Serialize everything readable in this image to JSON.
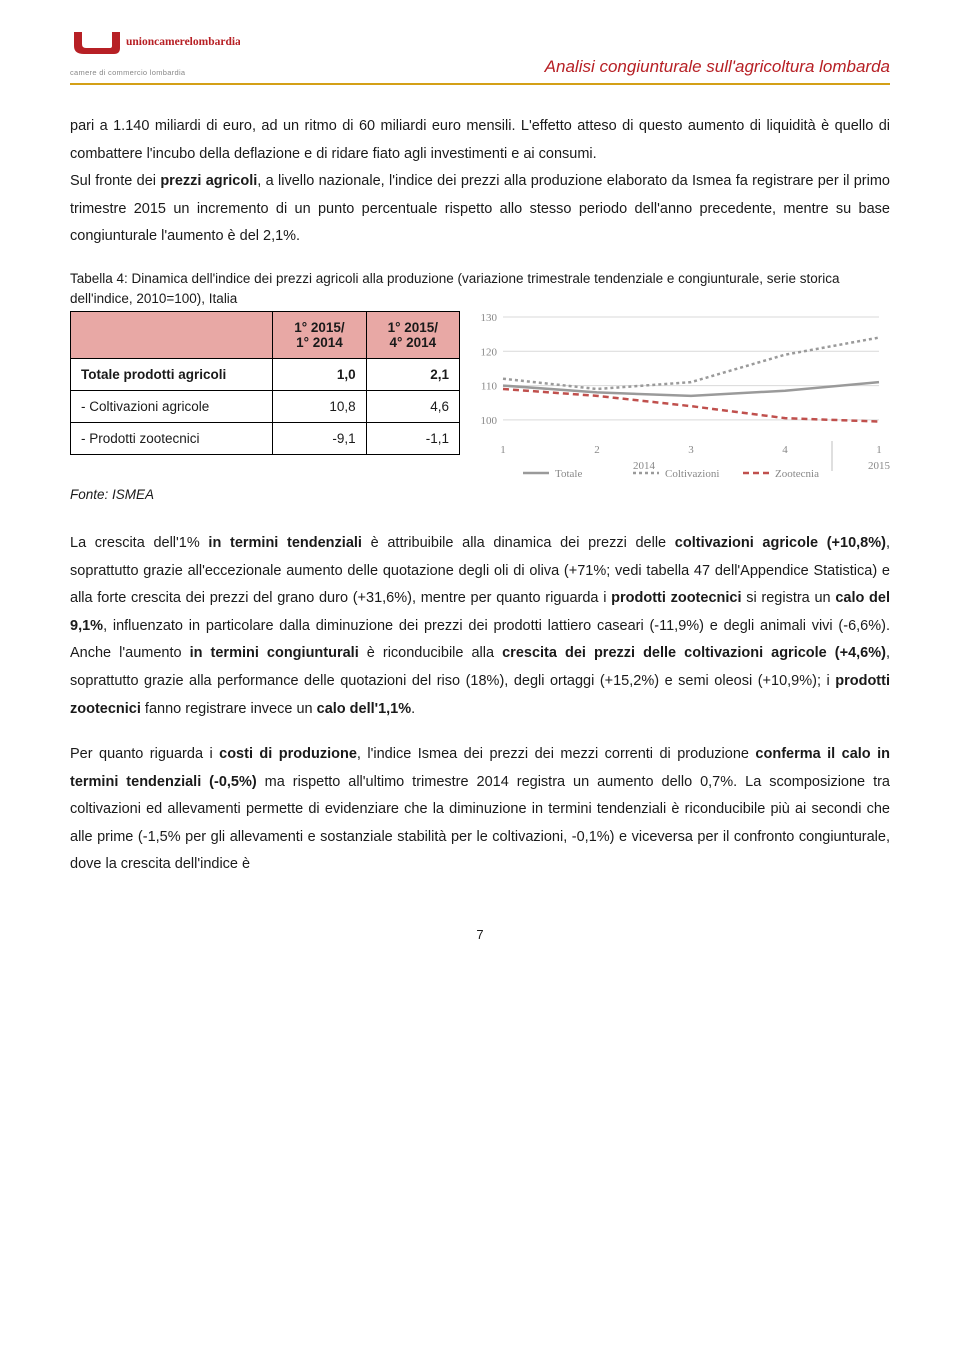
{
  "header": {
    "title": "Analisi congiunturale sull'agricoltura lombarda",
    "logo_main": "unioncamerelombardia",
    "logo_sub": "camere di commercio lombardia"
  },
  "para1_a": "pari a 1.140 miliardi di euro, ad un ritmo di 60 miliardi euro mensili. L'effetto atteso di questo aumento di liquidità è quello di combattere l'incubo della deflazione e di ridare fiato agli investimenti e ai consumi.",
  "para1_b": "Sul fronte dei ",
  "para1_b_bold": "prezzi agricoli",
  "para1_c": ", a livello nazionale, l'indice dei prezzi alla produzione elaborato da Ismea fa registrare per il primo trimestre 2015 un incremento di un punto percentuale rispetto allo stesso periodo dell'anno precedente, mentre su base congiunturale l'aumento è del 2,1%.",
  "table_caption": "Tabella 4: Dinamica dell'indice dei prezzi agricoli alla produzione (variazione trimestrale tendenziale e congiunturale, serie storica dell'indice, 2010=100), Italia",
  "table": {
    "col1_l1": "1° 2015/",
    "col1_l2": "1° 2014",
    "col2_l1": "1° 2015/",
    "col2_l2": "4° 2014",
    "rows": [
      {
        "label": "Totale prodotti agricoli",
        "v1": "1,0",
        "v2": "2,1",
        "bold": true
      },
      {
        "label": " - Coltivazioni agricole",
        "v1": "10,8",
        "v2": "4,6",
        "bold": false
      },
      {
        "label": " - Prodotti zootecnici",
        "v1": "-9,1",
        "v2": "-1,1",
        "bold": false
      }
    ]
  },
  "chart": {
    "ylim": [
      95,
      130
    ],
    "yticks": [
      100,
      110,
      120,
      130
    ],
    "x_labels": [
      "1",
      "2",
      "3",
      "4",
      "1"
    ],
    "x_group_labels": [
      "2014",
      "2015"
    ],
    "series": [
      {
        "name": "Totale",
        "color": "#9a9a9a",
        "dash": null,
        "values": [
          110,
          108,
          107,
          108.5,
          111
        ]
      },
      {
        "name": "Coltivazioni",
        "color": "#9a9a9a",
        "dash": "3,3",
        "values": [
          112,
          109,
          111,
          119,
          124
        ]
      },
      {
        "name": "Zootecnia",
        "color": "#c0504d",
        "dash": "6,4",
        "values": [
          109,
          107,
          104,
          100.5,
          99.5
        ]
      }
    ],
    "legend": [
      "Totale",
      "Coltivazioni",
      "Zootecnia"
    ],
    "grid_color": "#d9d9d9",
    "axis_color": "#bfbfbf",
    "label_color": "#888888",
    "label_fontsize": 11
  },
  "source": "Fonte: ISMEA",
  "para2_a": "La crescita dell'1% ",
  "para2_b_bold": "in termini tendenziali",
  "para2_c": " è attribuibile alla dinamica dei prezzi delle ",
  "para2_d_bold": "coltivazioni agricole (+10,8%)",
  "para2_e": ", soprattutto grazie all'eccezionale aumento delle quotazione degli oli di oliva (+71%; vedi tabella 47 dell'Appendice Statistica) e alla forte crescita dei prezzi del grano duro (+31,6%), mentre per quanto riguarda i ",
  "para2_f_bold": "prodotti zootecnici",
  "para2_g": " si registra un ",
  "para2_h_bold": "calo del 9,1%",
  "para2_i": ", influenzato in particolare dalla diminuzione dei prezzi dei prodotti lattiero caseari (-11,9%) e degli animali vivi (-6,6%). Anche l'aumento ",
  "para2_j_bold": "in termini congiunturali",
  "para2_k": " è riconducibile alla ",
  "para2_l_bold": "crescita dei prezzi delle coltivazioni agricole (+4,6%)",
  "para2_m": ", soprattutto grazie alla performance delle quotazioni del riso (18%), degli ortaggi (+15,2%) e semi oleosi (+10,9%); i ",
  "para2_n_bold": "prodotti zootecnici",
  "para2_o": " fanno registrare invece un ",
  "para2_p_bold": "calo dell'1,1%",
  "para2_q": ".",
  "para3_a": "Per quanto riguarda i ",
  "para3_b_bold": "costi di produzione",
  "para3_c": ", l'indice Ismea dei prezzi dei mezzi correnti di produzione ",
  "para3_d_bold": "conferma il calo in termini tendenziali (-0,5%)",
  "para3_e": " ma rispetto all'ultimo trimestre 2014 registra un aumento dello 0,7%. La scomposizione tra coltivazioni ed allevamenti permette di evidenziare che la diminuzione in termini tendenziali è riconducibile più ai secondi che alle prime (-1,5% per gli allevamenti e sostanziale stabilità per le coltivazioni, -0,1%) e viceversa per il confronto congiunturale, dove la crescita dell'indice è",
  "page_number": "7"
}
